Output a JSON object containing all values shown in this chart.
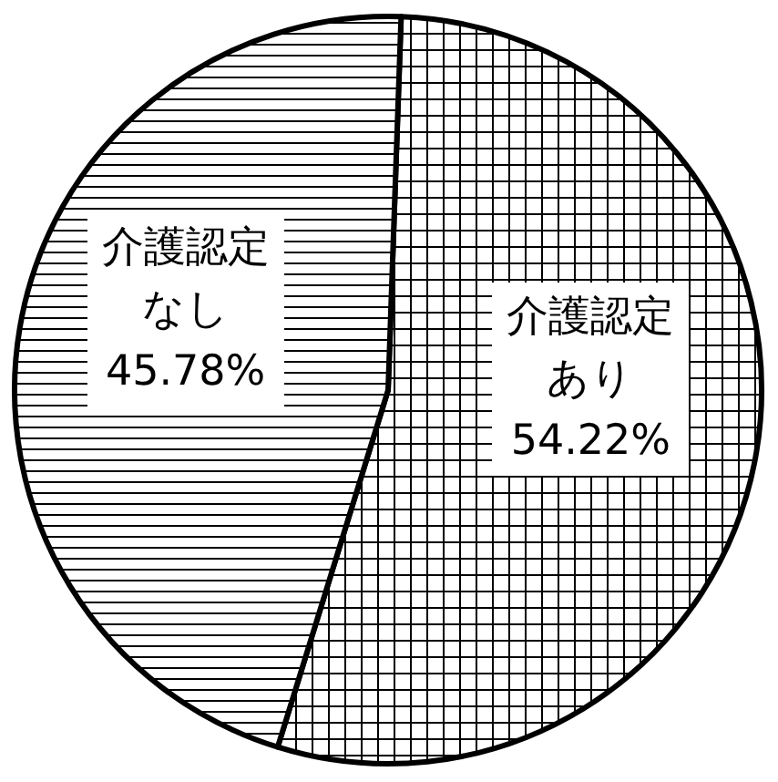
{
  "chart_data": {
    "type": "pie",
    "categories": [
      "介護認定あり",
      "介護認定なし"
    ],
    "values": [
      54.22,
      45.78
    ],
    "value_labels": [
      "54.22%",
      "45.78%"
    ]
  }
}
